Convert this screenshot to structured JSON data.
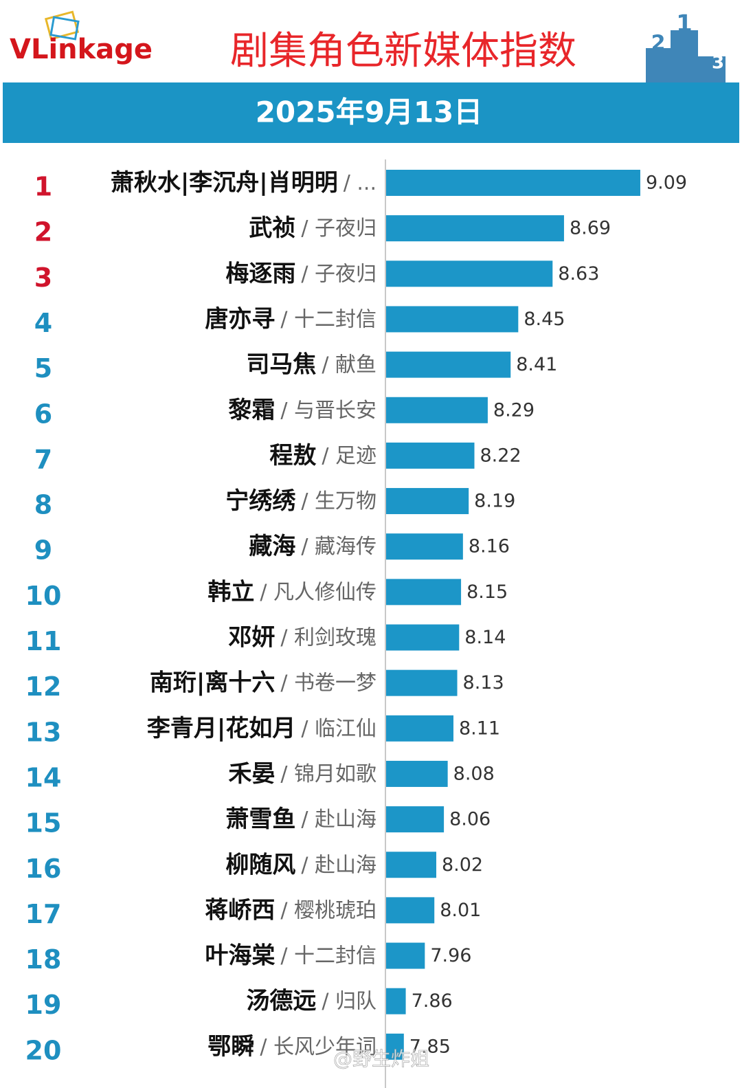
{
  "brand": "VLinkage",
  "podium_labels": [
    "2",
    "1",
    "3"
  ],
  "watermark": "@野生炸姐",
  "chart_data": {
    "type": "bar",
    "orientation": "horizontal",
    "title": "剧集角色新媒体指数",
    "subtitle": "2025年9月13日",
    "ranks": [
      "1",
      "2",
      "3",
      "4",
      "5",
      "6",
      "7",
      "8",
      "9",
      "10",
      "11",
      "12",
      "13",
      "14",
      "15",
      "16",
      "17",
      "18",
      "19",
      "20"
    ],
    "categories": [
      "萧秋水|李沉舟|肖明明",
      "武祯",
      "梅逐雨",
      "唐亦寻",
      "司马焦",
      "黎霜",
      "程敖",
      "宁绣绣",
      "藏海",
      "韩立",
      "邓妍",
      "南珩|离十六",
      "李青月|花如月",
      "禾晏",
      "萧雪鱼",
      "柳随风",
      "蒋峤西",
      "叶海棠",
      "汤德远",
      "鄂瞬"
    ],
    "dramas": [
      "/ ...",
      "/ 子夜归",
      "/ 子夜归",
      "/ 十二封信",
      "/ 献鱼",
      "/ 与晋长安",
      "/ 足迹",
      "/ 生万物",
      "/ 藏海传",
      "/ 凡人修仙传",
      "/ 利剑玫瑰",
      "/ 书卷一梦",
      "/ 临江仙",
      "/ 锦月如歌",
      "/ 赴山海",
      "/ 赴山海",
      "/ 樱桃琥珀",
      "/ 十二封信",
      "/ 归队",
      "/ 长风少年词"
    ],
    "values": [
      9.09,
      8.69,
      8.63,
      8.45,
      8.41,
      8.29,
      8.22,
      8.19,
      8.16,
      8.15,
      8.14,
      8.13,
      8.11,
      8.08,
      8.06,
      8.02,
      8.01,
      7.96,
      7.86,
      7.85
    ],
    "color": "#1c96c8",
    "top_rank_color": "#d0142c",
    "rank_color": "#1e8fc0",
    "xlim": [
      7.757,
      9.4
    ]
  }
}
